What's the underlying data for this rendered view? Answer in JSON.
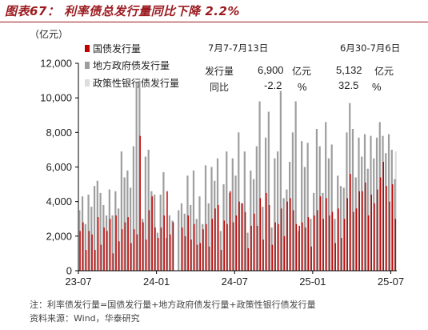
{
  "header": {
    "title": "图表67：  利率债总发行量同比下降 2.2%"
  },
  "unit_label": "（亿元）",
  "legend": [
    {
      "label": "国债发行量",
      "color": "#c00000"
    },
    {
      "label": "地方政府债发行量",
      "color": "#9e9e9e"
    },
    {
      "label": "政策性银行债发行量",
      "color": "#dedede"
    }
  ],
  "stats_table": {
    "period_current": "7月7-7月13日",
    "period_previous": "6月30-7月6日",
    "row_volume_label": "发行量",
    "row_yoy_label": "同比",
    "current_volume": "6,900",
    "previous_volume": "5,132",
    "volume_unit": "亿元",
    "current_yoy": "-2.2",
    "previous_yoy": "32.5",
    "yoy_unit": "%"
  },
  "chart_data": {
    "type": "bar",
    "stacked": false,
    "y_ticks": [
      "0",
      "2,000",
      "4,000",
      "6,000",
      "8,000",
      "10,000",
      "12,000"
    ],
    "ylim": [
      0,
      12000
    ],
    "x_ticks": [
      "23-07",
      "24-01",
      "24-07",
      "25-01",
      "25-07"
    ],
    "x_tick_positions": [
      0,
      26,
      52,
      78,
      104
    ],
    "grid": false,
    "legend_position": "top-left",
    "series": [
      {
        "name": "国债发行量",
        "color": "#c00000",
        "values": [
          2300,
          2800,
          1200,
          2300,
          2100,
          1200,
          3100,
          1500,
          2500,
          2300,
          3000,
          1000,
          3200,
          1700,
          2400,
          2800,
          3100,
          1600,
          2400,
          2100,
          7800,
          2800,
          1800,
          3500,
          4300,
          2500,
          1900,
          2500,
          3200,
          4600,
          2100,
          2800,
          0,
          0,
          2500,
          2000,
          3200,
          1800,
          2700,
          1500,
          1600,
          2400,
          2700,
          1400,
          3000,
          3600,
          3800,
          1200,
          2900,
          2700,
          4600,
          2800,
          3200,
          4000,
          3900,
          3400,
          1300,
          2600,
          3300,
          2600,
          4200,
          1800,
          4500,
          3800,
          1500,
          2800,
          2700,
          3600,
          2000,
          4000,
          4200,
          3500,
          2700,
          2600,
          2800,
          2500,
          3100,
          1400,
          3200,
          3500,
          4300,
          3000,
          4200,
          3200,
          3400,
          1600,
          3600,
          1900,
          3000,
          4200,
          5600,
          3400,
          3600,
          4600,
          4600,
          5100,
          3200,
          4400,
          3900,
          4700,
          5400,
          6300,
          4900,
          4000,
          5000,
          3000
        ]
      },
      {
        "name": "地方政府债发行量",
        "color": "#9e9e9e",
        "values": [
          3500,
          4300,
          2700,
          4400,
          3700,
          4900,
          5200,
          4500,
          3800,
          3200,
          4700,
          3200,
          4600,
          3600,
          6900,
          5400,
          5800,
          4800,
          7200,
          10900,
          11000,
          3000,
          6600,
          7000,
          4600,
          4400,
          2200,
          4400,
          5700,
          1900,
          3200,
          2900,
          0,
          3500,
          3900,
          3300,
          5500,
          3800,
          5800,
          3000,
          4300,
          2700,
          6100,
          3900,
          6000,
          5200,
          6500,
          2300,
          5000,
          6900,
          4500,
          6500,
          5500,
          8000,
          3900,
          6900,
          2200,
          5800,
          5300,
          7200,
          9800,
          3700,
          7700,
          9200,
          2500,
          6500,
          6900,
          10400,
          4200,
          4700,
          6300,
          8000,
          9800,
          2300,
          7500,
          6000,
          7400,
          3000,
          4500,
          8200,
          7200,
          4500,
          8600,
          6500,
          7300,
          3000,
          5500,
          4900,
          4800,
          8000,
          9700,
          8200,
          5400,
          7700,
          6600,
          7900,
          5900,
          7800,
          6500,
          7700,
          8600,
          7800,
          6800,
          7900,
          7000,
          5300
        ]
      },
      {
        "name": "政策性银行债发行量",
        "color": "#dedede",
        "values": [
          0,
          0,
          0,
          0,
          0,
          0,
          0,
          0,
          0,
          0,
          0,
          0,
          0,
          0,
          0,
          0,
          0,
          0,
          0,
          0,
          0,
          0,
          0,
          0,
          0,
          0,
          0,
          0,
          0,
          0,
          0,
          0,
          0,
          0,
          0,
          0,
          0,
          0,
          0,
          0,
          0,
          0,
          0,
          0,
          0,
          0,
          0,
          0,
          0,
          0,
          0,
          0,
          0,
          0,
          0,
          0,
          0,
          0,
          0,
          0,
          0,
          0,
          0,
          0,
          0,
          0,
          0,
          0,
          0,
          0,
          0,
          0,
          0,
          0,
          0,
          0,
          0,
          0,
          0,
          0,
          0,
          0,
          0,
          0,
          0,
          0,
          0,
          0,
          0,
          0,
          0,
          0,
          0,
          0,
          0,
          0,
          0,
          0,
          0,
          0,
          0,
          0,
          0,
          0,
          0,
          6900
        ]
      }
    ]
  },
  "footer": {
    "note": "注：利率债发行量=国债发行量+地方政府债发行量+政策性银行债发行量",
    "source": "资料来源：Wind，华泰研究"
  }
}
